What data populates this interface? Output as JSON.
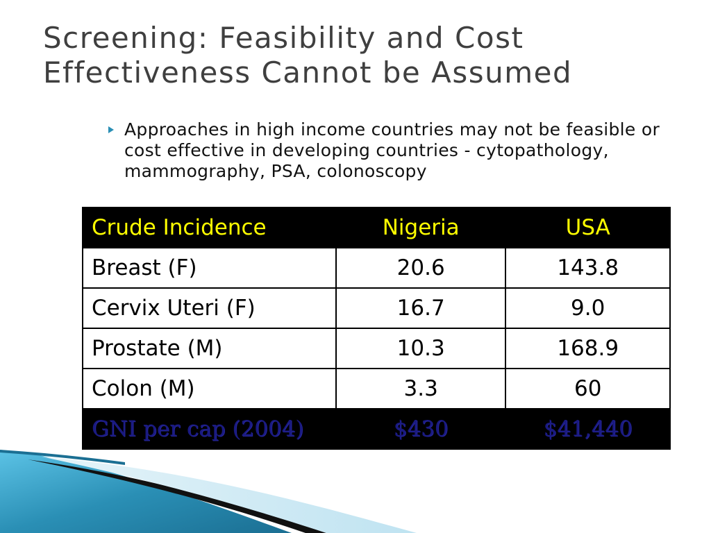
{
  "slide": {
    "title": "Screening: Feasibility and Cost Effectiveness Cannot be Assumed",
    "bullets": [
      "Approaches in high income countries may not be feasible or cost effective in developing countries - cytopathology, mammography, PSA, colonoscopy"
    ],
    "bullet_icon": "triangle-right-icon"
  },
  "table": {
    "headers": [
      "Crude Incidence",
      "Nigeria",
      "USA"
    ],
    "rows": [
      [
        "Breast (F)",
        "20.6",
        "143.8"
      ],
      [
        "Cervix Uteri (F)",
        "16.7",
        "9.0"
      ],
      [
        "Prostate (M)",
        "10.3",
        "168.9"
      ],
      [
        "Colon (M)",
        "3.3",
        "60"
      ]
    ],
    "footer": [
      "GNI per cap (2004)",
      "$430",
      "$41,440"
    ],
    "colors": {
      "header_bg": "#000000",
      "header_text": "#ffff00",
      "footer_text": "#1a1a80"
    }
  }
}
